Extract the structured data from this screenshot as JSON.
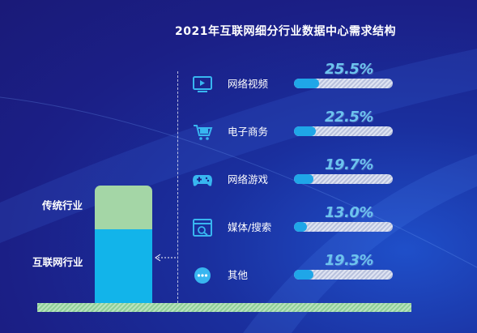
{
  "chart_data": {
    "type": "bar",
    "title": "2021年互联网细分行业数据中心需求结构",
    "categories": [
      "网络视频",
      "电子商务",
      "网络游戏",
      "媒体/搜索",
      "其他"
    ],
    "values": [
      25.5,
      22.5,
      19.7,
      13.0,
      19.3
    ],
    "value_labels": [
      "25.5%",
      "22.5%",
      "19.7%",
      "13.0%",
      "19.3%"
    ],
    "unit": "%",
    "xlim": [
      0,
      100
    ],
    "icons": [
      "video-icon",
      "shopping-cart-icon",
      "gamepad-icon",
      "browser-window-icon",
      "more-dots-icon"
    ],
    "stack": {
      "labels": [
        "传统行业",
        "互联网行业"
      ]
    },
    "colors": {
      "bar_fill": "#1fa6e8",
      "value_text": "#6cc3ee",
      "traditional": "#a4d6a6",
      "internet": "#12b4ea"
    }
  }
}
